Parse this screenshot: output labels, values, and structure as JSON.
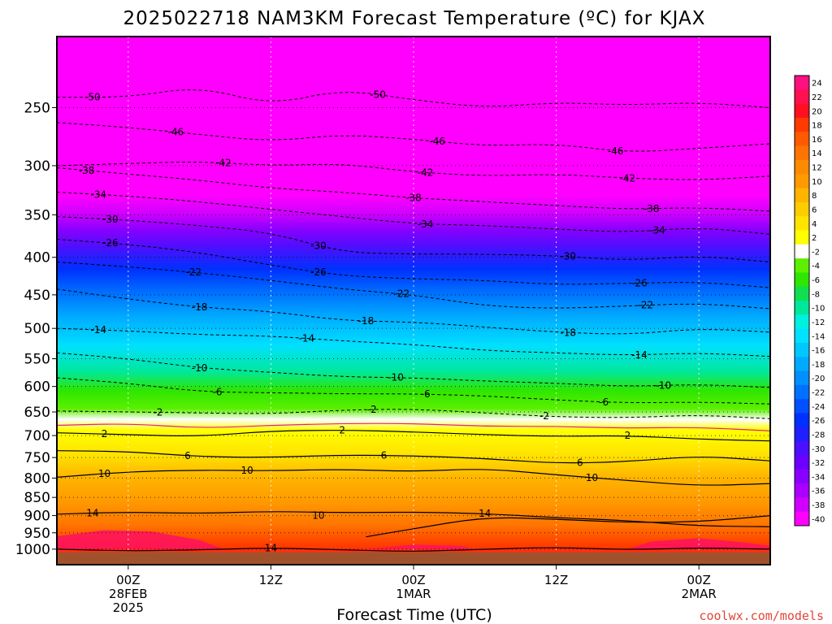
{
  "chart_data": {
    "type": "heatmap",
    "title": "2025022718 NAM3KM Forecast Temperature (ºC) for KJAX",
    "xlabel": "Forecast Time (UTC)",
    "ylabel": "",
    "credit": "coolwx.com/models",
    "y_axis": {
      "scale": "pressure (log, inverted)",
      "range_hPa": [
        200,
        1050
      ],
      "ticks": [
        250,
        300,
        350,
        400,
        450,
        500,
        550,
        600,
        650,
        700,
        750,
        800,
        850,
        900,
        950,
        1000
      ]
    },
    "x_axis": {
      "range_hours": [
        -6,
        54
      ],
      "ticks": [
        {
          "hour": 0,
          "lines": [
            "00Z",
            "28FEB",
            "2025"
          ]
        },
        {
          "hour": 12,
          "lines": [
            "12Z"
          ]
        },
        {
          "hour": 24,
          "lines": [
            "00Z",
            "1MAR"
          ]
        },
        {
          "hour": 36,
          "lines": [
            "12Z"
          ]
        },
        {
          "hour": 48,
          "lines": [
            "00Z",
            "2MAR"
          ]
        }
      ]
    },
    "colorbar": {
      "labels": [
        "24",
        "22",
        "20",
        "18",
        "16",
        "14",
        "12",
        "10",
        "8",
        "6",
        "4",
        "2",
        "-2",
        "-4",
        "-6",
        "-8",
        "-10",
        "-12",
        "-14",
        "-16",
        "-18",
        "-20",
        "-22",
        "-24",
        "-26",
        "-28",
        "-30",
        "-32",
        "-34",
        "-36",
        "-38",
        "-40"
      ],
      "colors": [
        "#ff1080",
        "#ff1050",
        "#ff1020",
        "#ff3a00",
        "#ff5a00",
        "#ff7400",
        "#ff8a00",
        "#ff9a00",
        "#ffb400",
        "#ffcc00",
        "#ffe400",
        "#ffff00",
        "#ffffff",
        "#5cf000",
        "#2ee600",
        "#10e050",
        "#00e89a",
        "#00f0e0",
        "#00e0ff",
        "#00c8ff",
        "#00aaff",
        "#0090ff",
        "#0070ff",
        "#0050ff",
        "#0030ff",
        "#2020ff",
        "#4a10ff",
        "#6a00ff",
        "#8a00ff",
        "#aa00ff",
        "#d000ff",
        "#ff00ff"
      ]
    },
    "contours_dashed": [
      {
        "temp": -50,
        "p_by_hour": [
          [
            -6,
            242
          ],
          [
            0,
            242
          ],
          [
            6,
            234
          ],
          [
            12,
            248
          ],
          [
            18,
            236
          ],
          [
            24,
            244
          ],
          [
            30,
            250
          ],
          [
            36,
            246
          ],
          [
            42,
            248
          ],
          [
            48,
            246
          ],
          [
            54,
            250
          ]
        ],
        "labels": [
          [
            -3,
            "-50"
          ],
          [
            21,
            "-50"
          ]
        ]
      },
      {
        "temp": -46,
        "p_by_hour": [
          [
            -6,
            262
          ],
          [
            0,
            266
          ],
          [
            6,
            272
          ],
          [
            12,
            278
          ],
          [
            18,
            272
          ],
          [
            24,
            276
          ],
          [
            30,
            282
          ],
          [
            36,
            280
          ],
          [
            42,
            288
          ],
          [
            48,
            284
          ],
          [
            54,
            280
          ]
        ],
        "labels": [
          [
            4,
            "-46"
          ],
          [
            26,
            "-46"
          ],
          [
            41,
            "-46"
          ]
        ]
      },
      {
        "temp": -42,
        "p_by_hour": [
          [
            -6,
            300
          ],
          [
            0,
            298
          ],
          [
            6,
            296
          ],
          [
            12,
            300
          ],
          [
            18,
            298
          ],
          [
            24,
            306
          ],
          [
            30,
            310
          ],
          [
            36,
            308
          ],
          [
            42,
            312
          ],
          [
            48,
            314
          ],
          [
            54,
            310
          ]
        ],
        "labels": [
          [
            8,
            "-42"
          ],
          [
            25,
            "-42"
          ],
          [
            42,
            "-42"
          ]
        ]
      },
      {
        "temp": -38,
        "p_by_hour": [
          [
            -6,
            302
          ],
          [
            0,
            308
          ],
          [
            6,
            314
          ],
          [
            12,
            322
          ],
          [
            18,
            326
          ],
          [
            24,
            332
          ],
          [
            30,
            336
          ],
          [
            36,
            340
          ],
          [
            42,
            344
          ],
          [
            48,
            342
          ],
          [
            54,
            346
          ]
        ],
        "labels": [
          [
            -3.5,
            "-38"
          ],
          [
            24,
            "-38"
          ],
          [
            44,
            "-38"
          ]
        ]
      },
      {
        "temp": -34,
        "p_by_hour": [
          [
            -6,
            326
          ],
          [
            0,
            330
          ],
          [
            6,
            336
          ],
          [
            12,
            344
          ],
          [
            18,
            352
          ],
          [
            24,
            360
          ],
          [
            30,
            362
          ],
          [
            36,
            366
          ],
          [
            42,
            370
          ],
          [
            48,
            364
          ],
          [
            54,
            372
          ]
        ],
        "labels": [
          [
            -2.5,
            "-34"
          ],
          [
            25,
            "-34"
          ],
          [
            44.5,
            "-34"
          ]
        ]
      },
      {
        "temp": -30,
        "p_by_hour": [
          [
            -6,
            352
          ],
          [
            0,
            356
          ],
          [
            6,
            362
          ],
          [
            12,
            370
          ],
          [
            18,
            394
          ],
          [
            24,
            396
          ],
          [
            30,
            396
          ],
          [
            36,
            398
          ],
          [
            42,
            404
          ],
          [
            48,
            398
          ],
          [
            54,
            406
          ]
        ],
        "labels": [
          [
            -1.5,
            "-30"
          ],
          [
            16,
            "-30"
          ],
          [
            37,
            "-30"
          ]
        ]
      },
      {
        "temp": -26,
        "p_by_hour": [
          [
            -6,
            378
          ],
          [
            0,
            384
          ],
          [
            6,
            394
          ],
          [
            12,
            410
          ],
          [
            18,
            424
          ],
          [
            24,
            428
          ],
          [
            30,
            430
          ],
          [
            36,
            436
          ],
          [
            42,
            434
          ],
          [
            48,
            432
          ],
          [
            54,
            440
          ]
        ],
        "labels": [
          [
            -1.5,
            "-26"
          ],
          [
            16,
            "-26"
          ],
          [
            43,
            "-26"
          ]
        ]
      },
      {
        "temp": -22,
        "p_by_hour": [
          [
            -6,
            406
          ],
          [
            0,
            412
          ],
          [
            6,
            420
          ],
          [
            12,
            430
          ],
          [
            18,
            442
          ],
          [
            24,
            450
          ],
          [
            30,
            466
          ],
          [
            36,
            470
          ],
          [
            42,
            466
          ],
          [
            48,
            462
          ],
          [
            54,
            470
          ]
        ],
        "labels": [
          [
            5.5,
            "-22"
          ],
          [
            23,
            "-22"
          ],
          [
            43.5,
            "-22"
          ]
        ]
      },
      {
        "temp": -18,
        "p_by_hour": [
          [
            -6,
            442
          ],
          [
            0,
            456
          ],
          [
            6,
            468
          ],
          [
            12,
            474
          ],
          [
            18,
            488
          ],
          [
            24,
            490
          ],
          [
            30,
            498
          ],
          [
            36,
            506
          ],
          [
            42,
            510
          ],
          [
            48,
            500
          ],
          [
            54,
            506
          ]
        ],
        "labels": [
          [
            6,
            "-18"
          ],
          [
            20,
            "-18"
          ],
          [
            37,
            "-18"
          ]
        ]
      },
      {
        "temp": -14,
        "p_by_hour": [
          [
            -6,
            500
          ],
          [
            0,
            504
          ],
          [
            6,
            510
          ],
          [
            12,
            512
          ],
          [
            18,
            520
          ],
          [
            24,
            526
          ],
          [
            30,
            536
          ],
          [
            36,
            540
          ],
          [
            42,
            544
          ],
          [
            48,
            540
          ],
          [
            54,
            546
          ]
        ],
        "labels": [
          [
            -2.5,
            "-14"
          ],
          [
            15,
            "-14"
          ],
          [
            43,
            "-14"
          ]
        ]
      },
      {
        "temp": -10,
        "p_by_hour": [
          [
            -6,
            540
          ],
          [
            0,
            550
          ],
          [
            6,
            566
          ],
          [
            12,
            574
          ],
          [
            18,
            582
          ],
          [
            24,
            584
          ],
          [
            30,
            590
          ],
          [
            36,
            594
          ],
          [
            42,
            600
          ],
          [
            48,
            596
          ],
          [
            54,
            602
          ]
        ],
        "labels": [
          [
            6,
            "-10"
          ],
          [
            22.5,
            "-10"
          ],
          [
            45,
            "-10"
          ]
        ]
      },
      {
        "temp": -6,
        "p_by_hour": [
          [
            -6,
            584
          ],
          [
            0,
            594
          ],
          [
            6,
            610
          ],
          [
            12,
            612
          ],
          [
            18,
            614
          ],
          [
            24,
            614
          ],
          [
            30,
            618
          ],
          [
            36,
            626
          ],
          [
            42,
            632
          ],
          [
            48,
            630
          ],
          [
            54,
            634
          ]
        ],
        "labels": [
          [
            7.5,
            "-6"
          ],
          [
            25,
            "-6"
          ],
          [
            40,
            "-6"
          ]
        ]
      },
      {
        "temp": -2,
        "p_by_hour": [
          [
            -6,
            648
          ],
          [
            0,
            650
          ],
          [
            6,
            652
          ],
          [
            12,
            654
          ],
          [
            18,
            646
          ],
          [
            24,
            644
          ],
          [
            30,
            652
          ],
          [
            36,
            660
          ],
          [
            42,
            662
          ],
          [
            48,
            656
          ],
          [
            54,
            664
          ]
        ],
        "labels": [
          [
            2.5,
            "-2"
          ],
          [
            20.5,
            "-2"
          ],
          [
            35,
            "-2"
          ]
        ]
      }
    ],
    "contours_solid": [
      {
        "temp": 0,
        "color": "#e0208a",
        "p_by_hour": [
          [
            -6,
            678
          ],
          [
            0,
            674
          ],
          [
            6,
            684
          ],
          [
            12,
            678
          ],
          [
            18,
            674
          ],
          [
            24,
            674
          ],
          [
            30,
            680
          ],
          [
            36,
            680
          ],
          [
            42,
            684
          ],
          [
            48,
            682
          ],
          [
            54,
            690
          ]
        ]
      },
      {
        "temp": 2,
        "color": "#000000",
        "p_by_hour": [
          [
            -6,
            694
          ],
          [
            0,
            698
          ],
          [
            6,
            702
          ],
          [
            12,
            690
          ],
          [
            18,
            688
          ],
          [
            24,
            692
          ],
          [
            30,
            698
          ],
          [
            36,
            702
          ],
          [
            42,
            700
          ],
          [
            48,
            708
          ],
          [
            54,
            712
          ]
        ],
        "labels": [
          [
            -2,
            "2"
          ],
          [
            18,
            "2"
          ],
          [
            42,
            "2"
          ]
        ]
      },
      {
        "temp": 6,
        "color": "#000000",
        "p_by_hour": [
          [
            -6,
            734
          ],
          [
            0,
            736
          ],
          [
            6,
            748
          ],
          [
            12,
            750
          ],
          [
            18,
            744
          ],
          [
            24,
            746
          ],
          [
            30,
            752
          ],
          [
            36,
            764
          ],
          [
            42,
            760
          ],
          [
            48,
            746
          ],
          [
            54,
            758
          ]
        ],
        "labels": [
          [
            5,
            "6"
          ],
          [
            21.5,
            "6"
          ],
          [
            38,
            "6"
          ]
        ]
      },
      {
        "temp": 10,
        "color": "#000000",
        "p_by_hour": [
          [
            -6,
            798
          ],
          [
            0,
            784
          ],
          [
            6,
            780
          ],
          [
            12,
            782
          ],
          [
            18,
            778
          ],
          [
            24,
            784
          ],
          [
            30,
            776
          ],
          [
            36,
            792
          ],
          [
            42,
            806
          ],
          [
            48,
            820
          ],
          [
            54,
            814
          ]
        ],
        "labels": [
          [
            -2,
            "10"
          ],
          [
            10,
            "10"
          ],
          [
            39,
            "10"
          ]
        ]
      },
      {
        "temp": 10,
        "color": "#000000",
        "p_by_hour": [
          [
            20,
            962
          ],
          [
            24,
            938
          ],
          [
            30,
            904
          ],
          [
            36,
            910
          ],
          [
            42,
            920
          ],
          [
            48,
            918
          ],
          [
            54,
            900
          ]
        ],
        "labels": [
          [
            16,
            "10"
          ]
        ]
      },
      {
        "temp": 14,
        "color": "#000000",
        "p_by_hour": [
          [
            -6,
            896
          ],
          [
            0,
            890
          ],
          [
            6,
            894
          ],
          [
            12,
            888
          ],
          [
            18,
            892
          ],
          [
            24,
            890
          ],
          [
            30,
            894
          ],
          [
            36,
            906
          ],
          [
            42,
            914
          ],
          [
            48,
            930
          ],
          [
            54,
            932
          ]
        ],
        "labels": [
          [
            -3,
            "14"
          ],
          [
            30,
            "14"
          ]
        ]
      },
      {
        "temp": 14,
        "color": "#000000",
        "p_by_hour": [
          [
            -6,
            1000
          ],
          [
            0,
            1006
          ],
          [
            6,
            1002
          ],
          [
            12,
            996
          ],
          [
            18,
            1002
          ],
          [
            24,
            1008
          ],
          [
            30,
            1000
          ],
          [
            36,
            994
          ],
          [
            42,
            1002
          ],
          [
            48,
            996
          ],
          [
            54,
            1000
          ]
        ],
        "labels": [
          [
            12,
            "14"
          ]
        ]
      }
    ]
  }
}
